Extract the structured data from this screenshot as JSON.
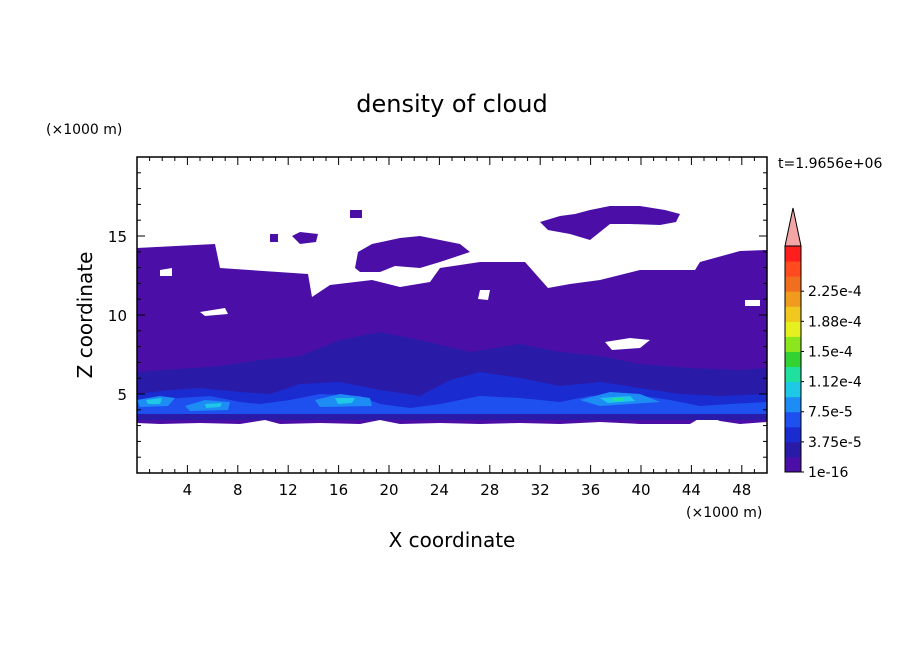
{
  "chart_data": {
    "type": "heatmap",
    "title": "density of cloud",
    "time_label": "t=1.9656e+06",
    "xlabel": "X coordinate",
    "ylabel": "Z coordinate",
    "x_unit": "(×1000 m)",
    "y_unit": "(×1000 m)",
    "xlim": [
      0,
      50
    ],
    "ylim": [
      0,
      20
    ],
    "x_ticks": [
      "4",
      "8",
      "12",
      "16",
      "20",
      "24",
      "28",
      "32",
      "36",
      "40",
      "44",
      "48"
    ],
    "y_ticks": [
      "5",
      "10",
      "15"
    ],
    "colorbar": {
      "labels": [
        "1e-16",
        "3.75e-5",
        "7.5e-5",
        "1.12e-4",
        "1.5e-4",
        "1.88e-4",
        "2.25e-4"
      ],
      "colors": [
        "#4b0fa8",
        "#2a1aa8",
        "#1a2bd0",
        "#1e50f0",
        "#1e8cf5",
        "#1ec8e6",
        "#1ee1a0",
        "#33d233",
        "#8ce61e",
        "#e6f01e",
        "#f0c81e",
        "#f09b1e",
        "#f06e1e",
        "#ff4b1e",
        "#ff1e1e"
      ],
      "extend_color": "#f4a5a5"
    }
  }
}
